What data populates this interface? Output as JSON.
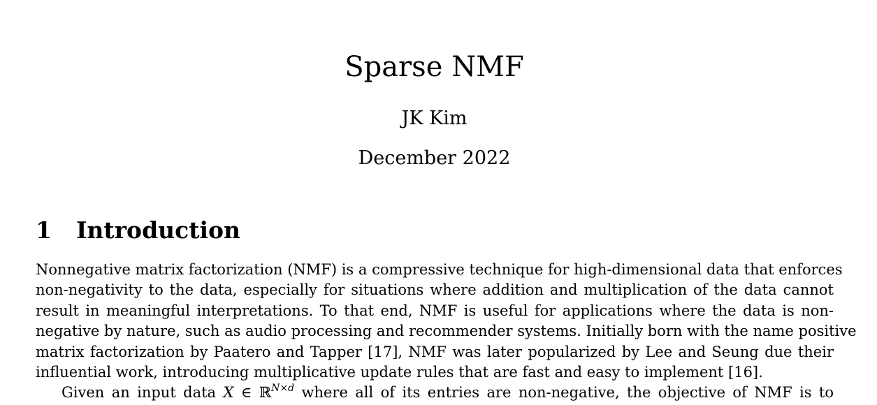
{
  "document": {
    "title": "Sparse NMF",
    "author": "JK Kim",
    "date": "December 2022"
  },
  "section": {
    "number": "1",
    "heading": "Introduction"
  },
  "paragraph1": {
    "lines": [
      "Nonnegative matrix factorization (NMF) is a compressive technique for high-dimensional data that enforces",
      "non-negativity to the data, especially for situations where addition and multiplication of the data cannot",
      "result in meaningful interpretations.  To that end, NMF is useful for applications where the data is non-",
      "negative by nature, such as audio processing and recommender systems. Initially born with the name positive",
      "matrix factorization by Paatero and Tapper [17], NMF was later popularized by Lee and Seung due their",
      "influential work, introducing multiplicative update rules that are fast and easy to implement [16]."
    ]
  },
  "paragraph2": {
    "prefix": "Given an input data ",
    "var_x": "X",
    "in_symbol": " ∈ ℝ",
    "superscript": "N×d",
    "suffix": " where all of its entries are non-negative, the objective of NMF is to"
  }
}
